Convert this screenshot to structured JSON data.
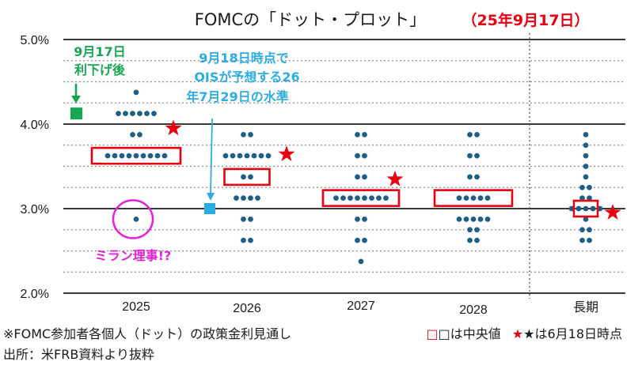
{
  "chart_data": {
    "type": "dot-plot",
    "title": "FOMCの「ドット・プロット」",
    "date_label": "（25年9月17日）",
    "yticks": [
      {
        "value": 5.0,
        "label": "5.0%"
      },
      {
        "value": 4.0,
        "label": "4.0%"
      },
      {
        "value": 3.0,
        "label": "3.0%"
      },
      {
        "value": 2.0,
        "label": "2.0%"
      }
    ],
    "ylim": [
      2.0,
      5.0
    ],
    "categories": [
      "2025",
      "2026",
      "2027",
      "2028",
      "長期"
    ],
    "dots": [
      {
        "category": "2025",
        "levels": [
          {
            "value": 4.375,
            "count": 1
          },
          {
            "value": 4.125,
            "count": 6
          },
          {
            "value": 3.875,
            "count": 2
          },
          {
            "value": 3.625,
            "count": 9
          },
          {
            "value": 2.875,
            "count": 1
          }
        ]
      },
      {
        "category": "2026",
        "levels": [
          {
            "value": 3.875,
            "count": 2
          },
          {
            "value": 3.625,
            "count": 7
          },
          {
            "value": 3.375,
            "count": 2
          },
          {
            "value": 3.125,
            "count": 4
          },
          {
            "value": 2.875,
            "count": 2
          },
          {
            "value": 2.625,
            "count": 2
          }
        ]
      },
      {
        "category": "2027",
        "levels": [
          {
            "value": 3.875,
            "count": 2
          },
          {
            "value": 3.625,
            "count": 2
          },
          {
            "value": 3.375,
            "count": 2
          },
          {
            "value": 3.125,
            "count": 8
          },
          {
            "value": 2.875,
            "count": 2
          },
          {
            "value": 2.625,
            "count": 2
          },
          {
            "value": 2.375,
            "count": 1
          }
        ]
      },
      {
        "category": "2028",
        "levels": [
          {
            "value": 3.875,
            "count": 2
          },
          {
            "value": 3.625,
            "count": 2
          },
          {
            "value": 3.375,
            "count": 2
          },
          {
            "value": 3.125,
            "count": 5
          },
          {
            "value": 2.875,
            "count": 5
          },
          {
            "value": 2.75,
            "count": 2
          },
          {
            "value": 2.625,
            "count": 2
          }
        ]
      },
      {
        "category": "長期",
        "levels": [
          {
            "value": 3.875,
            "count": 1
          },
          {
            "value": 3.75,
            "count": 1
          },
          {
            "value": 3.625,
            "count": 1
          },
          {
            "value": 3.5,
            "count": 1
          },
          {
            "value": 3.375,
            "count": 1
          },
          {
            "value": 3.25,
            "count": 2
          },
          {
            "value": 3.125,
            "count": 2
          },
          {
            "value": 3.0,
            "count": 5
          },
          {
            "value": 2.875,
            "count": 1
          },
          {
            "value": 2.75,
            "count": 2
          },
          {
            "value": 2.625,
            "count": 2
          }
        ]
      }
    ],
    "medians": [
      {
        "category": "2025",
        "value": 3.625
      },
      {
        "category": "2026",
        "value": 3.375
      },
      {
        "category": "2027",
        "value": 3.125
      },
      {
        "category": "2028",
        "value": 3.125
      },
      {
        "category": "長期",
        "value": 3.0
      }
    ],
    "june_medians": [
      {
        "category": "2025",
        "value": 3.875
      },
      {
        "category": "2026",
        "value": 3.625
      },
      {
        "category": "2027",
        "value": 3.375
      },
      {
        "category": "長期",
        "value": 3.0
      }
    ],
    "markers": {
      "post_cut": {
        "value": 4.125,
        "label_lines": [
          "9月17日",
          "利下げ後"
        ]
      },
      "ois": {
        "value": 3.0,
        "label_lines": [
          "9月18日時点で",
          "OISが予想する26",
          "年7月29日の水準"
        ]
      }
    },
    "miran_label": "ミラン理事!?",
    "footnote": {
      "note_prefix": "※FOMC参加者各個人（ドット）の政策金利見通し",
      "median_label": "□は中央値",
      "star_label": "★は6月18日時点",
      "source": "出所：米FRB資料より抜粋"
    }
  },
  "colors": {
    "dot": "#1f5f87",
    "median_box": "#e8000f",
    "star": "#e8000f",
    "post_cut": "#17a651",
    "ois": "#2bace2",
    "miran": "#e51fd6",
    "title_date": "#e8000f"
  }
}
